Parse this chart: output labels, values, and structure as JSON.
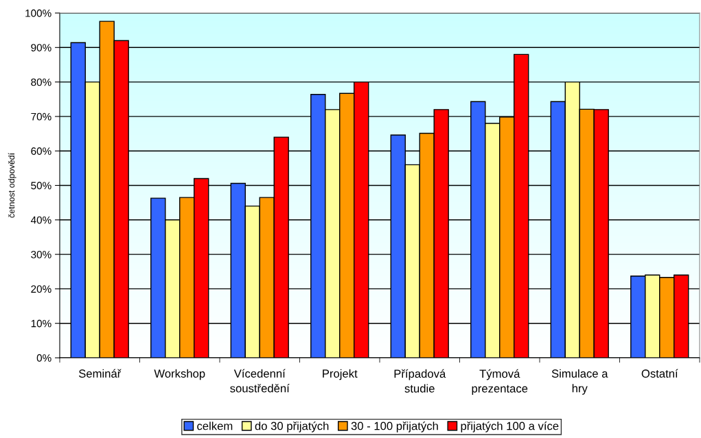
{
  "chart_data": {
    "type": "bar",
    "ylabel": "četnost odpovědí",
    "categories": [
      "Seminář",
      "Workshop",
      "Vícedenní\nsoustředění",
      "Projekt",
      "Případová\nstudie",
      "Týmová\nprezentace",
      "Simulace a\nhry",
      "Ostatní"
    ],
    "series": [
      {
        "name": "celkem",
        "color": "#3366ff",
        "values": [
          91.4,
          46.3,
          50.6,
          76.4,
          64.6,
          74.3,
          74.3,
          23.7
        ]
      },
      {
        "name": "do 30 přijatých",
        "color": "#ffff99",
        "values": [
          80,
          40,
          44,
          72,
          56,
          68,
          80,
          24
        ]
      },
      {
        "name": "30 - 100 přijatých",
        "color": "#ff9900",
        "values": [
          97.6,
          46.5,
          46.5,
          76.7,
          65.1,
          69.8,
          72.1,
          23.3
        ]
      },
      {
        "name": "přijatých 100 a více",
        "color": "#ff0000",
        "values": [
          92,
          52,
          64,
          80,
          72,
          88,
          72,
          24
        ]
      }
    ],
    "ylim": [
      0,
      100
    ],
    "yticks": [
      {
        "value": 0,
        "label": "0%"
      },
      {
        "value": 10,
        "label": "10%"
      },
      {
        "value": 20,
        "label": "20%"
      },
      {
        "value": 30,
        "label": "30%"
      },
      {
        "value": 40,
        "label": "40%"
      },
      {
        "value": 50,
        "label": "50%"
      },
      {
        "value": 60,
        "label": "60%"
      },
      {
        "value": 70,
        "label": "70%"
      },
      {
        "value": 80,
        "label": "80%"
      },
      {
        "value": 90,
        "label": "90%"
      },
      {
        "value": 100,
        "label": "100%"
      }
    ],
    "grid": "y",
    "legend": "bottom"
  }
}
